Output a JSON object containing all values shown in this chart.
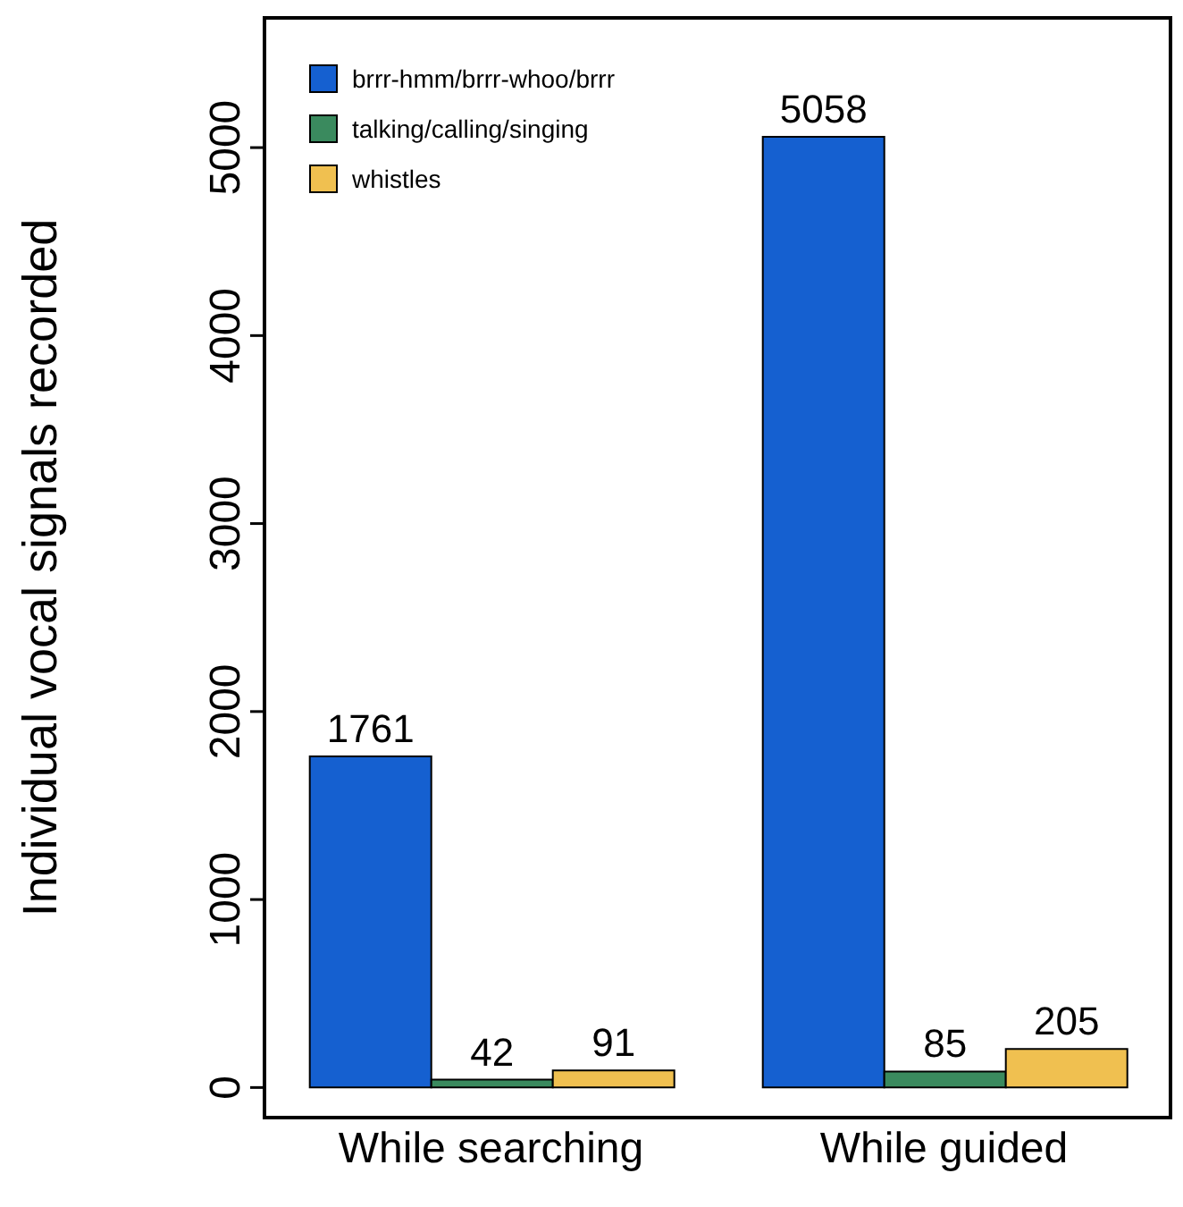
{
  "chart_data": {
    "type": "bar",
    "ylabel": "Individual vocal signals recorded",
    "categories": [
      "While searching",
      "While guided"
    ],
    "series": [
      {
        "name": "brrr-hmm/brrr-whoo/brrr",
        "color": "#1560d0",
        "values": [
          1761,
          5058
        ]
      },
      {
        "name": "talking/calling/singing",
        "color": "#3a8a5e",
        "values": [
          42,
          85
        ]
      },
      {
        "name": "whistles",
        "color": "#f0c050",
        "values": [
          91,
          205
        ]
      }
    ],
    "ylim": [
      -160,
      5690
    ],
    "yticks": [
      0,
      1000,
      2000,
      3000,
      4000,
      5000
    ],
    "data_labels": true,
    "legend": "top left",
    "grid": false
  }
}
